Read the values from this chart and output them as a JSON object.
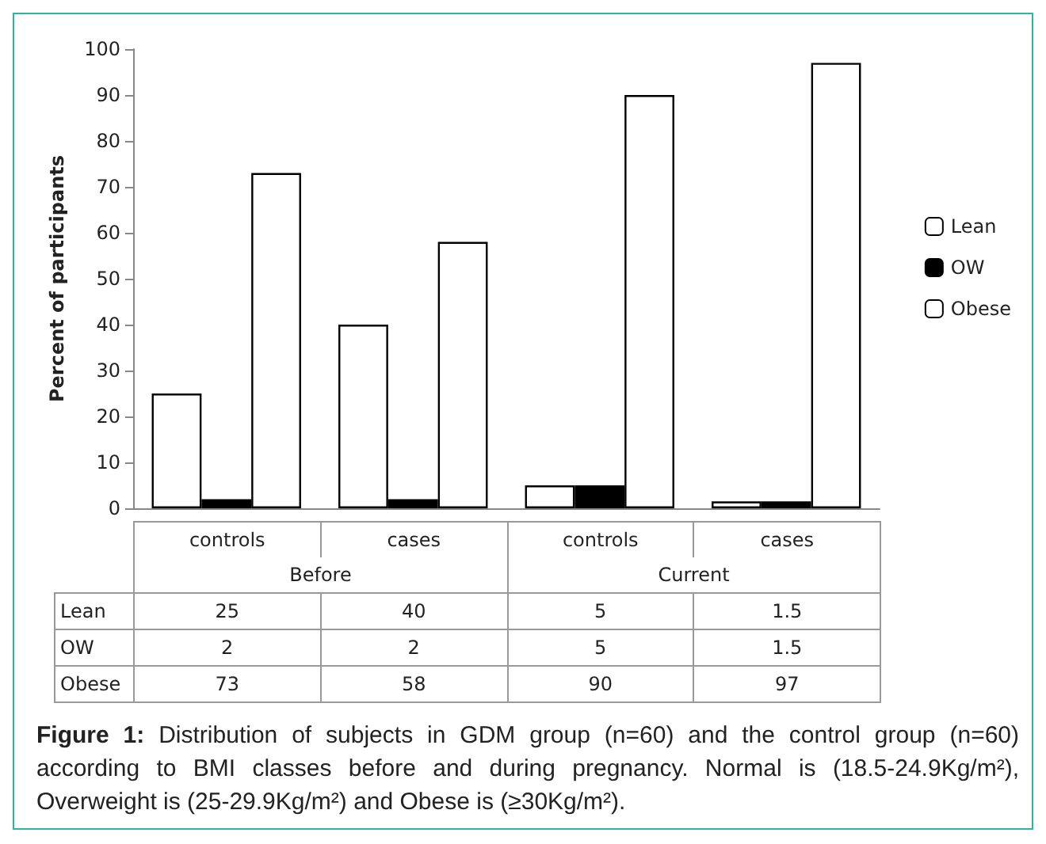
{
  "chart_data": {
    "type": "bar",
    "ylabel": "Percent of participants",
    "categories": [
      "controls",
      "cases",
      "controls",
      "cases"
    ],
    "series": [
      {
        "name": "Lean",
        "color": "#ffffff",
        "values": [
          25,
          40,
          5,
          1.5
        ]
      },
      {
        "name": "OW",
        "color": "#000000",
        "values": [
          2,
          2,
          5,
          1.5
        ]
      },
      {
        "name": "Obese",
        "color": "#ffffff",
        "values": [
          73,
          58,
          90,
          97
        ]
      }
    ],
    "ylim": [
      0,
      100
    ],
    "yticks": [
      0,
      10,
      20,
      30,
      40,
      50,
      60,
      70,
      80,
      90,
      100
    ],
    "grid": false,
    "legend": "right",
    "data_labels": true,
    "annotations": [
      "Before",
      "Current",
      "Figure 1: Distribution of subjects in GDM group (n=60) and the control group (n=60) according to BMI classes before and during pregnancy. Normal is (18.5-24.9Kg/m²), Overweight is (25-29.9Kg/m²) and Obese is (≥30Kg/m²)."
    ]
  }
}
